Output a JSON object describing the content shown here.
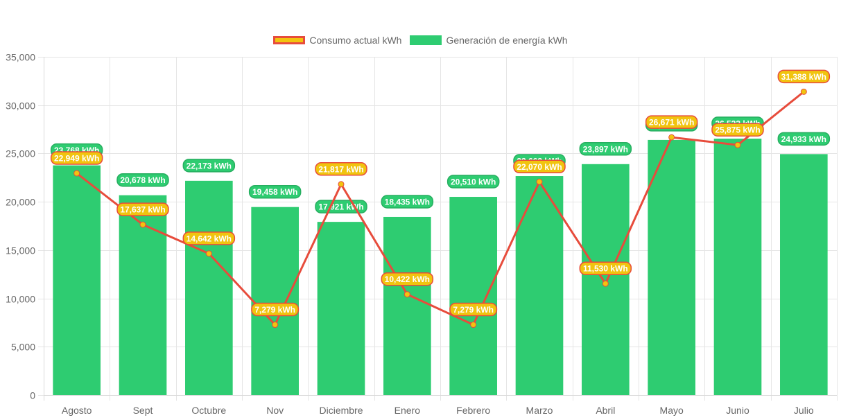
{
  "chart_data": {
    "type": "bar",
    "title": "",
    "xlabel": "",
    "ylabel": "",
    "ylim": [
      0,
      35000
    ],
    "yticks": [
      "0",
      "5,000",
      "10,000",
      "15,000",
      "20,000",
      "25,000",
      "30,000",
      "35,000"
    ],
    "ytick_values": [
      0,
      5000,
      10000,
      15000,
      20000,
      25000,
      30000,
      35000
    ],
    "grid": true,
    "legend_position": "top-center",
    "unit_suffix": " kWh",
    "categories": [
      "Agosto",
      "Sept",
      "Octubre",
      "Nov",
      "Diciembre",
      "Enero",
      "Febrero",
      "Marzo",
      "Abril",
      "Mayo",
      "Junio",
      "Julio"
    ],
    "series": [
      {
        "name": "Consumo actual kWh",
        "type": "line",
        "color": "#e74c3c",
        "point_color": "#f1c40f",
        "values": [
          22949,
          17637,
          14642,
          7279,
          21817,
          10422,
          7279,
          22070,
          11530,
          26671,
          25875,
          31388
        ]
      },
      {
        "name": "Generación de energía kWh",
        "type": "bar",
        "color": "#2ecc71",
        "values": [
          23768,
          20678,
          22173,
          19458,
          17921,
          18435,
          20510,
          22662,
          23897,
          26400,
          26533,
          24933
        ]
      }
    ]
  }
}
